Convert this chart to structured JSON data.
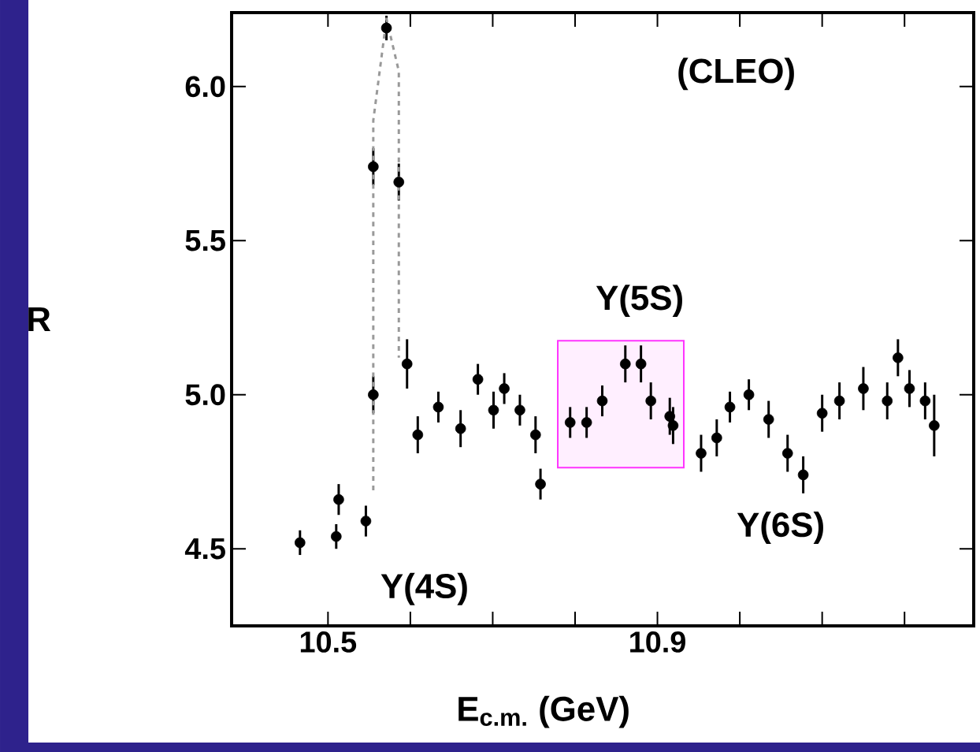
{
  "chart_data": {
    "type": "scatter",
    "xlabel": "E$_{c.m.}$ (GeV)",
    "ylabel": "R",
    "xlim": [
      10.383,
      11.284
    ],
    "ylim": [
      4.25,
      6.24
    ],
    "xticks": [
      10.5,
      {
        "value": 10.6,
        "label": null
      },
      {
        "value": 10.7,
        "label": null
      },
      {
        "value": 10.8,
        "label": null
      },
      10.9,
      {
        "value": 11.0,
        "label": null
      },
      {
        "value": 11.1,
        "label": null
      },
      {
        "value": 11.2,
        "label": null
      }
    ],
    "yticks": [
      4.5,
      {
        "value": 5,
        "label": "5.0"
      },
      5.5,
      {
        "value": 6,
        "label": "6.0"
      }
    ],
    "grid": false,
    "series": [
      {
        "color": "#000000",
        "marker": "circle",
        "x": [
          10.466,
          10.51,
          10.513,
          10.546,
          10.555,
          10.555,
          10.571,
          10.586,
          10.596,
          10.609,
          10.634,
          10.661,
          10.682,
          10.701,
          10.714,
          10.733,
          10.752,
          10.758,
          10.794,
          10.814,
          10.833,
          10.861,
          10.88,
          10.892,
          10.915,
          10.919,
          10.953,
          10.972,
          10.988,
          11.011,
          11.035,
          11.058,
          11.077,
          11.1,
          11.121,
          11.15,
          11.179,
          11.192,
          11.206,
          11.225,
          11.236
        ],
        "values": [
          4.52,
          4.54,
          4.66,
          4.59,
          5.0,
          5.74,
          6.19,
          5.69,
          5.1,
          4.87,
          4.96,
          4.89,
          5.05,
          4.95,
          5.02,
          4.95,
          4.87,
          4.71,
          4.91,
          4.91,
          4.98,
          5.1,
          5.1,
          4.98,
          4.93,
          4.9,
          4.81,
          4.86,
          4.96,
          5.0,
          4.92,
          4.81,
          4.74,
          4.94,
          4.98,
          5.02,
          4.98,
          5.12,
          5.02,
          4.98,
          4.9
        ],
        "errors": [
          0.04,
          0.04,
          0.05,
          0.05,
          0.06,
          0.06,
          0.04,
          0.06,
          0.08,
          0.06,
          0.05,
          0.06,
          0.05,
          0.06,
          0.05,
          0.05,
          0.06,
          0.05,
          0.05,
          0.05,
          0.05,
          0.06,
          0.06,
          0.06,
          0.06,
          0.06,
          0.06,
          0.06,
          0.05,
          0.05,
          0.06,
          0.06,
          0.06,
          0.06,
          0.06,
          0.07,
          0.06,
          0.06,
          0.06,
          0.06,
          0.1
        ]
      },
      {
        "type": "line",
        "color": "#999999",
        "line_style": "dashed",
        "marker": "none",
        "x": [
          10.555,
          10.555,
          10.571,
          10.586,
          10.586
        ],
        "values": [
          4.69,
          5.89,
          6.22,
          6.05,
          5.12
        ]
      }
    ],
    "bands": [
      {
        "axis": "x",
        "from": 10.779,
        "to": 10.932,
        "color": "#ff33ff"
      }
    ],
    "annotations": [
      "(CLEO)",
      "Υ(4S)",
      "Υ(5S)",
      "Υ(6S)"
    ]
  }
}
